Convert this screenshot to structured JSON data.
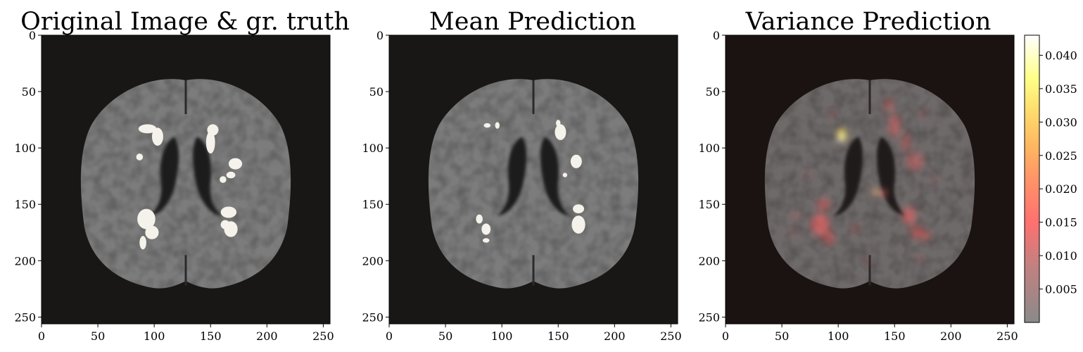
{
  "chart_data": [
    {
      "type": "heatmap",
      "title": "Original Image & gr. truth",
      "xlim": [
        0,
        256
      ],
      "ylim": [
        256,
        0
      ],
      "x_ticks": [
        0,
        50,
        100,
        150,
        200,
        250
      ],
      "y_ticks": [
        0,
        50,
        100,
        150,
        200,
        250
      ],
      "overlay": "ground-truth lesion mask",
      "overlay_color": "#f4f2ea"
    },
    {
      "type": "heatmap",
      "title": "Mean Prediction",
      "xlim": [
        0,
        256
      ],
      "ylim": [
        256,
        0
      ],
      "x_ticks": [
        0,
        50,
        100,
        150,
        200,
        250
      ],
      "y_ticks": [
        0,
        50,
        100,
        150,
        200,
        250
      ],
      "overlay": "predicted lesion mask",
      "overlay_color": "#f4f2ea"
    },
    {
      "type": "heatmap",
      "title": "Variance Prediction",
      "xlim": [
        0,
        256
      ],
      "ylim": [
        256,
        0
      ],
      "x_ticks": [
        0,
        50,
        100,
        150,
        200,
        250
      ],
      "y_ticks": [
        0,
        50,
        100,
        150,
        200,
        250
      ],
      "overlay": "variance heat overlay",
      "colorbar": {
        "min": 0.0,
        "max": 0.043,
        "ticks": [
          "0.005",
          "0.010",
          "0.015",
          "0.020",
          "0.025",
          "0.030",
          "0.035",
          "0.040"
        ],
        "colors": [
          "#8a8a8a",
          "#c87a7a",
          "#ff7070",
          "#ff9060",
          "#ffb050",
          "#ffd860",
          "#ffff80",
          "#ffffe8",
          "#ffffff"
        ]
      }
    }
  ],
  "colors": {
    "background": "#181715",
    "brain": "#7c7c7c",
    "ventricle": "#1e1e1e",
    "lesion": "#f4f2ea"
  }
}
